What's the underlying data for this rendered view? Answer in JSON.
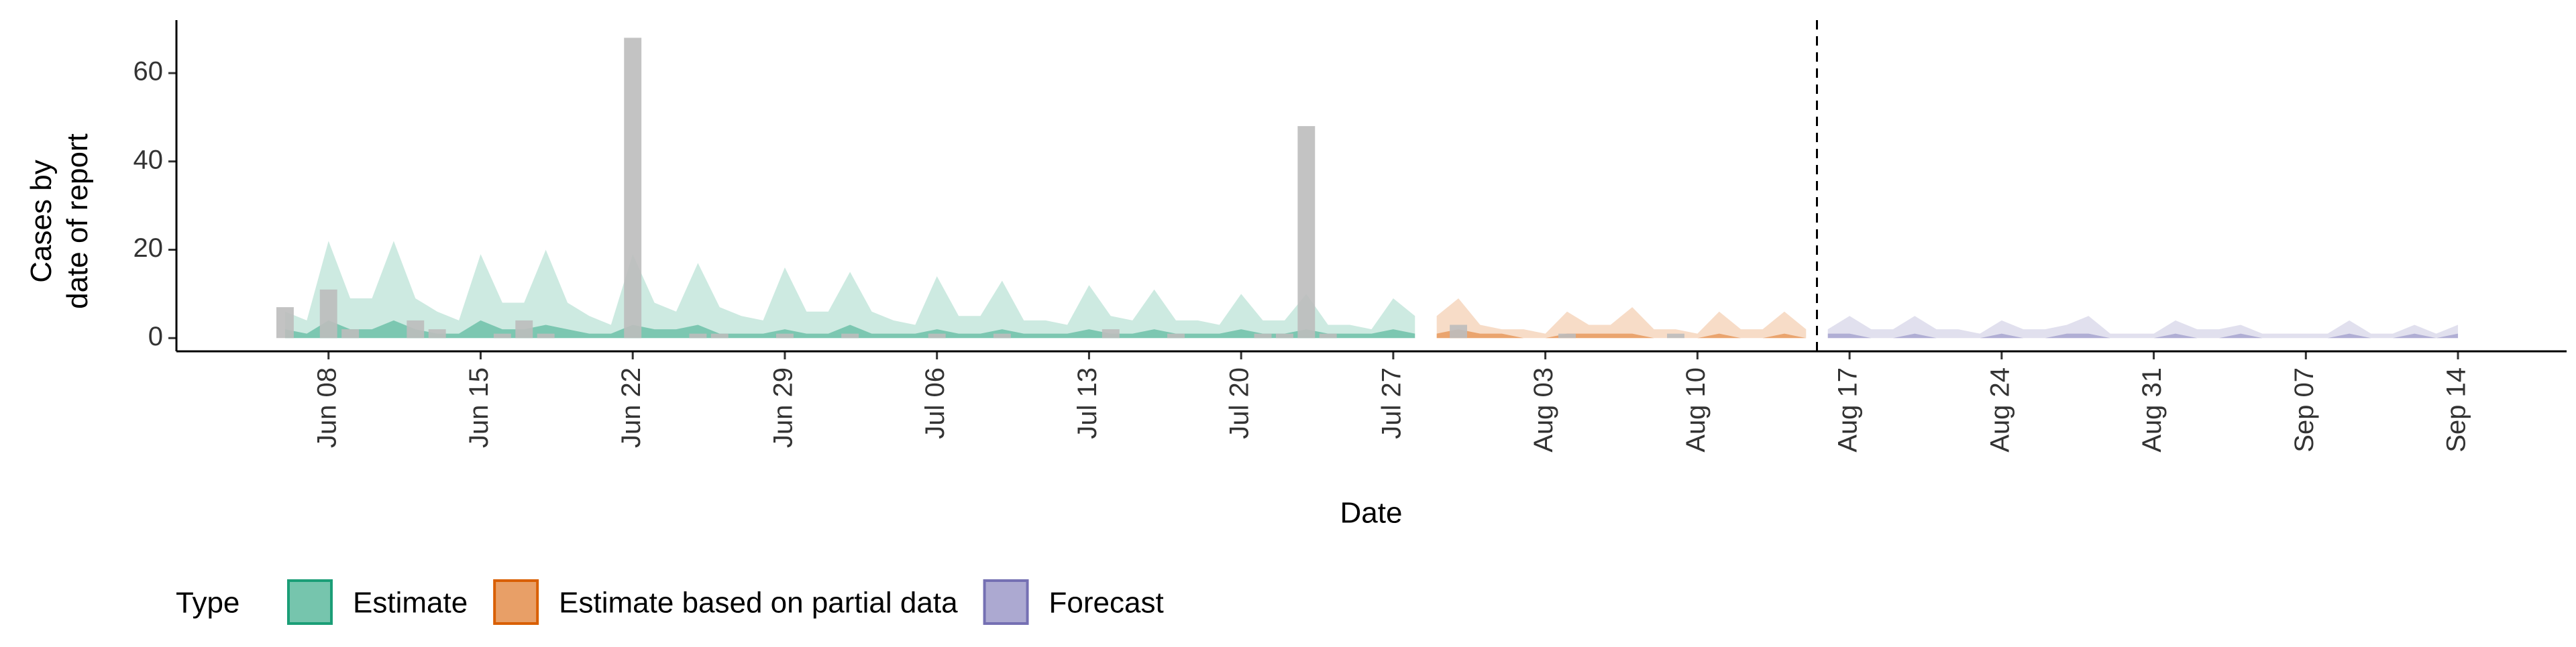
{
  "chart_data": {
    "type": "ribbon",
    "y_label": [
      "Cases by",
      "date of report"
    ],
    "x_label": "Date",
    "legend_title": "Type",
    "legend": "bottom",
    "ylim": [
      -3,
      72
    ],
    "yticks": [
      0,
      20,
      40,
      60
    ],
    "categories": [
      null,
      null,
      "Jun 08",
      null,
      null,
      null,
      null,
      null,
      null,
      "Jun 15",
      null,
      null,
      null,
      null,
      null,
      null,
      "Jun 22",
      null,
      null,
      null,
      null,
      null,
      null,
      "Jun 29",
      null,
      null,
      null,
      null,
      null,
      null,
      "Jul 06",
      null,
      null,
      null,
      null,
      null,
      null,
      "Jul 13",
      null,
      null,
      null,
      null,
      null,
      null,
      "Jul 20",
      null,
      null,
      null,
      null,
      null,
      null,
      "Jul 27",
      null,
      null,
      null,
      null,
      null,
      null,
      "Aug 03",
      null,
      null,
      null,
      null,
      null,
      null,
      "Aug 10",
      null,
      null,
      null,
      null,
      null,
      null,
      "Aug 17",
      null,
      null,
      null,
      null,
      null,
      null,
      "Aug 24",
      null,
      null,
      null,
      null,
      null,
      null,
      "Aug 31",
      null,
      null,
      null,
      null,
      null,
      null,
      "Sep 07",
      null,
      null,
      null,
      null,
      null,
      null,
      "Sep 14"
    ],
    "bars": {
      "color": "#bdbdbd",
      "values": [
        7,
        0,
        11,
        2,
        0,
        0,
        4,
        2,
        0,
        0,
        1,
        4,
        1,
        0,
        0,
        0,
        68,
        0,
        0,
        1,
        1,
        0,
        0,
        1,
        0,
        0,
        1,
        0,
        0,
        0,
        1,
        0,
        0,
        1,
        0,
        0,
        0,
        0,
        2,
        0,
        0,
        1,
        0,
        0,
        0,
        1,
        1,
        48,
        1,
        0,
        0,
        0,
        0,
        0,
        3,
        0,
        0,
        0,
        0,
        1,
        0,
        0,
        0,
        0,
        1,
        0,
        0,
        0,
        0,
        0,
        0,
        null,
        null,
        null,
        null,
        null,
        null,
        null,
        null,
        null,
        null,
        null,
        null,
        null,
        null,
        null,
        null,
        null,
        null,
        null,
        null,
        null,
        null,
        null,
        null,
        null,
        null,
        null,
        null,
        null,
        null
      ]
    },
    "series": [
      {
        "name": "Estimate",
        "color": "#1b9e77",
        "values": [
          6,
          4,
          22,
          9,
          9,
          22,
          9,
          6,
          4,
          19,
          8,
          8,
          20,
          8,
          5,
          3,
          19,
          8,
          6,
          17,
          7,
          5,
          4,
          16,
          6,
          6,
          15,
          6,
          4,
          3,
          14,
          5,
          5,
          13,
          4,
          4,
          3,
          12,
          5,
          4,
          11,
          4,
          4,
          3,
          10,
          4,
          4,
          10,
          3,
          3,
          2,
          9,
          5,
          null,
          null,
          null,
          null,
          null,
          null,
          null,
          null,
          null,
          null,
          null,
          null,
          null,
          null,
          null,
          null,
          null,
          null,
          null,
          null,
          null,
          null,
          null,
          null,
          null,
          null,
          null,
          null,
          null,
          null,
          null,
          null,
          null,
          null,
          null,
          null,
          null,
          null,
          null,
          null,
          null,
          null,
          null,
          null,
          null,
          null,
          null,
          null
        ],
        "inner_values": [
          2,
          1,
          4,
          2,
          2,
          4,
          2,
          1,
          1,
          4,
          2,
          2,
          3,
          2,
          1,
          1,
          3,
          2,
          2,
          3,
          1,
          1,
          1,
          2,
          1,
          1,
          3,
          1,
          1,
          1,
          2,
          1,
          1,
          2,
          1,
          1,
          1,
          2,
          1,
          1,
          2,
          1,
          1,
          1,
          2,
          1,
          1,
          2,
          1,
          1,
          1,
          2,
          1,
          null,
          null,
          null,
          null,
          null,
          null,
          null,
          null,
          null,
          null,
          null,
          null,
          null,
          null,
          null,
          null,
          null,
          null,
          null,
          null,
          null,
          null,
          null,
          null,
          null,
          null,
          null,
          null,
          null,
          null,
          null,
          null,
          null,
          null,
          null,
          null,
          null,
          null,
          null,
          null,
          null,
          null,
          null,
          null,
          null,
          null,
          null,
          null
        ]
      },
      {
        "name": "Estimate based on partial data",
        "color": "#d95f02",
        "values": [
          null,
          null,
          null,
          null,
          null,
          null,
          null,
          null,
          null,
          null,
          null,
          null,
          null,
          null,
          null,
          null,
          null,
          null,
          null,
          null,
          null,
          null,
          null,
          null,
          null,
          null,
          null,
          null,
          null,
          null,
          null,
          null,
          null,
          null,
          null,
          null,
          null,
          null,
          null,
          null,
          null,
          null,
          null,
          null,
          null,
          null,
          null,
          null,
          null,
          null,
          null,
          null,
          null,
          5,
          9,
          3,
          2,
          2,
          1,
          6,
          3,
          3,
          7,
          2,
          2,
          1,
          6,
          2,
          2,
          6,
          2,
          null,
          null,
          null,
          null,
          null,
          null,
          null,
          null,
          null,
          null,
          null,
          null,
          null,
          null,
          null,
          null,
          null,
          null,
          null,
          null,
          null,
          null,
          null,
          null,
          null,
          null,
          null,
          null,
          null,
          null
        ],
        "inner_values": [
          null,
          null,
          null,
          null,
          null,
          null,
          null,
          null,
          null,
          null,
          null,
          null,
          null,
          null,
          null,
          null,
          null,
          null,
          null,
          null,
          null,
          null,
          null,
          null,
          null,
          null,
          null,
          null,
          null,
          null,
          null,
          null,
          null,
          null,
          null,
          null,
          null,
          null,
          null,
          null,
          null,
          null,
          null,
          null,
          null,
          null,
          null,
          null,
          null,
          null,
          null,
          null,
          null,
          1,
          2,
          1,
          1,
          0,
          0,
          1,
          1,
          1,
          1,
          0,
          0,
          0,
          1,
          0,
          0,
          1,
          0,
          null,
          null,
          null,
          null,
          null,
          null,
          null,
          null,
          null,
          null,
          null,
          null,
          null,
          null,
          null,
          null,
          null,
          null,
          null,
          null,
          null,
          null,
          null,
          null,
          null,
          null,
          null,
          null,
          null,
          null
        ]
      },
      {
        "name": "Forecast",
        "color": "#7570b3",
        "values": [
          null,
          null,
          null,
          null,
          null,
          null,
          null,
          null,
          null,
          null,
          null,
          null,
          null,
          null,
          null,
          null,
          null,
          null,
          null,
          null,
          null,
          null,
          null,
          null,
          null,
          null,
          null,
          null,
          null,
          null,
          null,
          null,
          null,
          null,
          null,
          null,
          null,
          null,
          null,
          null,
          null,
          null,
          null,
          null,
          null,
          null,
          null,
          null,
          null,
          null,
          null,
          null,
          null,
          null,
          null,
          null,
          null,
          null,
          null,
          null,
          null,
          null,
          null,
          null,
          null,
          null,
          null,
          null,
          null,
          null,
          null,
          2,
          5,
          2,
          2,
          5,
          2,
          2,
          1,
          4,
          2,
          2,
          3,
          5,
          1,
          1,
          1,
          4,
          2,
          2,
          3,
          1,
          1,
          1,
          1,
          4,
          1,
          1,
          3,
          1,
          3
        ],
        "inner_values": [
          null,
          null,
          null,
          null,
          null,
          null,
          null,
          null,
          null,
          null,
          null,
          null,
          null,
          null,
          null,
          null,
          null,
          null,
          null,
          null,
          null,
          null,
          null,
          null,
          null,
          null,
          null,
          null,
          null,
          null,
          null,
          null,
          null,
          null,
          null,
          null,
          null,
          null,
          null,
          null,
          null,
          null,
          null,
          null,
          null,
          null,
          null,
          null,
          null,
          null,
          null,
          null,
          null,
          null,
          null,
          null,
          null,
          null,
          null,
          null,
          null,
          null,
          null,
          null,
          null,
          null,
          null,
          null,
          null,
          null,
          null,
          1,
          1,
          0,
          0,
          1,
          0,
          0,
          0,
          1,
          0,
          0,
          1,
          1,
          0,
          0,
          0,
          1,
          0,
          0,
          1,
          0,
          0,
          0,
          0,
          1,
          0,
          0,
          1,
          0,
          1
        ]
      }
    ]
  }
}
